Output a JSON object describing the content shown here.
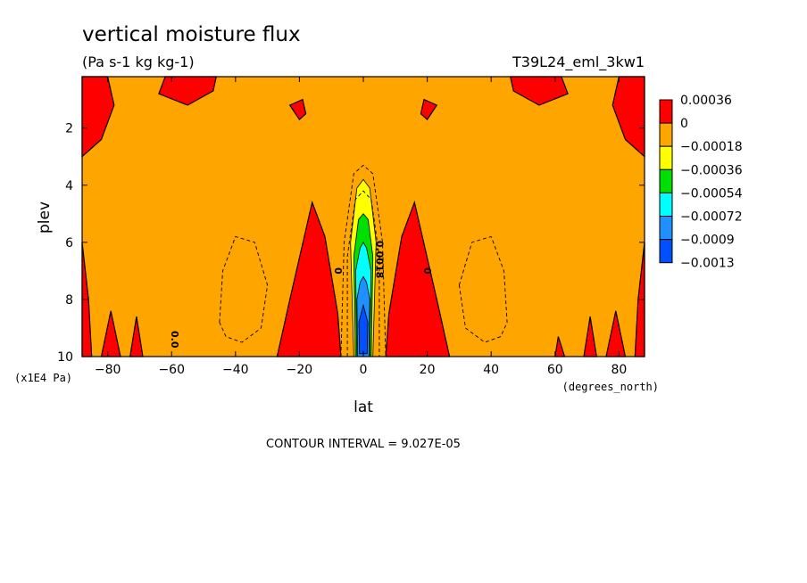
{
  "chart_data": {
    "type": "heatmap",
    "title": "vertical moisture flux",
    "units": "(Pa s-1 kg kg-1)",
    "dataset": "T39L24_eml_3kw1",
    "xlabel": "lat",
    "xunits": "(degrees_north)",
    "ylabel": "plev",
    "yunits": "(x1E4 Pa)",
    "xlim": [
      -88,
      88
    ],
    "ylim": [
      10,
      0.2
    ],
    "x_ticks": [
      -80,
      -60,
      -40,
      -20,
      0,
      20,
      40,
      60,
      80
    ],
    "y_ticks": [
      2,
      4,
      6,
      8,
      10
    ],
    "contour_interval_text": "CONTOUR INTERVAL = 9.027E-05",
    "contour_labels": [
      "0",
      "0",
      "0.0018",
      "0.0"
    ],
    "colorbar": {
      "levels": [
        "0.00036",
        "0",
        "-0.00018",
        "-0.00036",
        "-0.00054",
        "-0.00072",
        "-0.0009",
        "-0.0013"
      ],
      "colors": [
        "#ff0000",
        "#ffa500",
        "#ffff00",
        "#00e000",
        "#00ffff",
        "#1e90ff",
        "#0050ff"
      ]
    },
    "regions": [
      {
        "name": "positive-top-left",
        "level": 0,
        "points": [
          [
            -88,
            0.2
          ],
          [
            -88,
            3
          ],
          [
            -82,
            2.4
          ],
          [
            -78,
            1.2
          ],
          [
            -80,
            0.2
          ]
        ]
      },
      {
        "name": "positive-top-left-inner",
        "level": 0,
        "points": [
          [
            -62,
            0.2
          ],
          [
            -64,
            0.8
          ],
          [
            -55,
            1.2
          ],
          [
            -47,
            0.7
          ],
          [
            -46,
            0.2
          ]
        ]
      },
      {
        "name": "positive-top-left-dot",
        "level": 0,
        "points": [
          [
            -23,
            1.2
          ],
          [
            -20,
            1.7
          ],
          [
            -18,
            1.5
          ],
          [
            -19,
            1.0
          ]
        ]
      },
      {
        "name": "positive-top-right",
        "level": 0,
        "points": [
          [
            80,
            0.2
          ],
          [
            78,
            1.2
          ],
          [
            82,
            2.4
          ],
          [
            88,
            3
          ],
          [
            88,
            0.2
          ]
        ]
      },
      {
        "name": "positive-top-right-inner",
        "level": 0,
        "points": [
          [
            46,
            0.2
          ],
          [
            47,
            0.7
          ],
          [
            55,
            1.2
          ],
          [
            64,
            0.8
          ],
          [
            62,
            0.2
          ]
        ]
      },
      {
        "name": "positive-top-right-dot",
        "level": 0,
        "points": [
          [
            19,
            1.0
          ],
          [
            18,
            1.5
          ],
          [
            20,
            1.7
          ],
          [
            23,
            1.2
          ]
        ]
      },
      {
        "name": "positive-mid-left",
        "level": 0,
        "points": [
          [
            -27,
            10
          ],
          [
            -23,
            8
          ],
          [
            -16,
            4.6
          ],
          [
            -12,
            5.8
          ],
          [
            -8,
            8.5
          ],
          [
            -7,
            10
          ]
        ]
      },
      {
        "name": "positive-mid-right",
        "level": 0,
        "points": [
          [
            7,
            10
          ],
          [
            8,
            8.5
          ],
          [
            12,
            5.8
          ],
          [
            16,
            4.6
          ],
          [
            23,
            8
          ],
          [
            27,
            10
          ]
        ]
      },
      {
        "name": "positive-edge-left",
        "level": 0,
        "points": [
          [
            -88,
            10
          ],
          [
            -88,
            6
          ],
          [
            -86,
            8
          ],
          [
            -85,
            10
          ]
        ]
      },
      {
        "name": "positive-left-spike-a",
        "level": 0,
        "points": [
          [
            -82,
            10
          ],
          [
            -79,
            8.4
          ],
          [
            -76,
            10
          ]
        ]
      },
      {
        "name": "positive-left-spike-b",
        "level": 0,
        "points": [
          [
            -73,
            10
          ],
          [
            -71,
            8.6
          ],
          [
            -69,
            10
          ]
        ]
      },
      {
        "name": "positive-right-spike-a",
        "level": 0,
        "points": [
          [
            69,
            10
          ],
          [
            71,
            8.6
          ],
          [
            73,
            10
          ]
        ]
      },
      {
        "name": "positive-right-spike-b",
        "level": 0,
        "points": [
          [
            76,
            10
          ],
          [
            79,
            8.4
          ],
          [
            82,
            10
          ]
        ]
      },
      {
        "name": "positive-edge-right",
        "level": 0,
        "points": [
          [
            85,
            10
          ],
          [
            86,
            8
          ],
          [
            88,
            6
          ],
          [
            88,
            10
          ]
        ]
      },
      {
        "name": "positive-right-dot",
        "level": 0,
        "points": [
          [
            60,
            10
          ],
          [
            61,
            9.3
          ],
          [
            63,
            10
          ]
        ]
      },
      {
        "name": "negative-core-1",
        "level": 2,
        "points": [
          [
            -3,
            10
          ],
          [
            -4,
            6
          ],
          [
            -2,
            4.1
          ],
          [
            0,
            3.8
          ],
          [
            2,
            4.1
          ],
          [
            4,
            6
          ],
          [
            3,
            10
          ]
        ]
      },
      {
        "name": "negative-core-2",
        "level": 3,
        "points": [
          [
            -2.5,
            10
          ],
          [
            -3,
            6.5
          ],
          [
            -1.5,
            5.2
          ],
          [
            0,
            5
          ],
          [
            1.5,
            5.2
          ],
          [
            3,
            6.5
          ],
          [
            2.5,
            10
          ]
        ]
      },
      {
        "name": "negative-core-3",
        "level": 4,
        "points": [
          [
            -2,
            10
          ],
          [
            -2.4,
            7
          ],
          [
            -1,
            6.2
          ],
          [
            0,
            6
          ],
          [
            1,
            6.2
          ],
          [
            2.4,
            7
          ],
          [
            2,
            10
          ]
        ]
      },
      {
        "name": "negative-core-4",
        "level": 5,
        "points": [
          [
            -1.8,
            10
          ],
          [
            -2,
            8
          ],
          [
            -1,
            7.4
          ],
          [
            0,
            7.2
          ],
          [
            1,
            7.4
          ],
          [
            2,
            8
          ],
          [
            1.8,
            10
          ]
        ]
      },
      {
        "name": "negative-core-5",
        "level": 6,
        "points": [
          [
            -1.2,
            9.9
          ],
          [
            -1.4,
            8.8
          ],
          [
            0,
            8.2
          ],
          [
            1.4,
            8.8
          ],
          [
            1.2,
            9.9
          ]
        ]
      }
    ],
    "dashed_contours": [
      {
        "name": "dash-left-loop",
        "points": [
          [
            -45,
            8.8
          ],
          [
            -44,
            7
          ],
          [
            -40,
            5.8
          ],
          [
            -34,
            6
          ],
          [
            -30,
            7.5
          ],
          [
            -32,
            9
          ],
          [
            -38,
            9.5
          ],
          [
            -43,
            9.3
          ]
        ]
      },
      {
        "name": "dash-right-loop",
        "points": [
          [
            30,
            7.5
          ],
          [
            34,
            6
          ],
          [
            40,
            5.8
          ],
          [
            44,
            7
          ],
          [
            45,
            8.8
          ],
          [
            43,
            9.3
          ],
          [
            38,
            9.5
          ],
          [
            32,
            9
          ]
        ]
      },
      {
        "name": "dash-core-outer",
        "points": [
          [
            -7,
            10
          ],
          [
            -6,
            6
          ],
          [
            -3,
            3.6
          ],
          [
            0,
            3.3
          ],
          [
            3,
            3.6
          ],
          [
            6,
            6
          ],
          [
            7,
            10
          ]
        ]
      },
      {
        "name": "dash-core-inner",
        "points": [
          [
            -5,
            10
          ],
          [
            -5,
            6.5
          ],
          [
            -2.5,
            4.5
          ],
          [
            0,
            4.2
          ],
          [
            2.5,
            4.5
          ],
          [
            5,
            6.5
          ],
          [
            5,
            10
          ]
        ]
      }
    ]
  }
}
